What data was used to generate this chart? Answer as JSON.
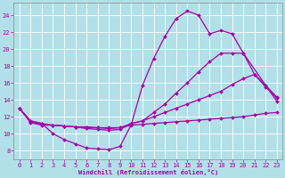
{
  "background_color": "#b2e0e8",
  "grid_color": "#d0d0d0",
  "line_color": "#aa00aa",
  "xlabel": "Windchill (Refroidissement éolien,°C)",
  "xlim": [
    -0.5,
    23.5
  ],
  "ylim": [
    7,
    25.5
  ],
  "yticks": [
    8,
    10,
    12,
    14,
    16,
    18,
    20,
    22,
    24
  ],
  "xticks": [
    0,
    1,
    2,
    3,
    4,
    5,
    6,
    7,
    8,
    9,
    10,
    11,
    12,
    13,
    14,
    15,
    16,
    17,
    18,
    19,
    20,
    21,
    22,
    23
  ],
  "lines": [
    {
      "x": [
        0,
        1,
        2,
        3,
        4,
        5,
        6,
        7,
        8,
        9,
        10,
        11,
        12,
        13,
        14,
        15,
        16,
        17,
        18,
        19,
        20,
        23
      ],
      "y": [
        13,
        11.5,
        11.2,
        10.0,
        9.3,
        8.8,
        8.3,
        8.2,
        8.1,
        8.5,
        11.1,
        15.7,
        18.9,
        21.5,
        23.6,
        24.5,
        24.0,
        21.8,
        22.2,
        21.8,
        19.5,
        13.8
      ]
    },
    {
      "x": [
        0,
        1,
        2,
        3,
        4,
        5,
        6,
        7,
        8,
        9,
        10,
        11,
        12,
        13,
        14,
        15,
        16,
        17,
        18,
        19,
        20,
        21,
        22,
        23
      ],
      "y": [
        13,
        11.4,
        11.1,
        11.0,
        10.9,
        10.8,
        10.6,
        10.5,
        10.4,
        10.5,
        11.2,
        11.5,
        12.5,
        13.5,
        14.8,
        16.0,
        17.3,
        18.5,
        19.5,
        19.5,
        19.5,
        17.0,
        15.5,
        14.2
      ]
    },
    {
      "x": [
        0,
        1,
        2,
        3,
        4,
        5,
        6,
        7,
        8,
        9,
        10,
        11,
        12,
        13,
        14,
        15,
        16,
        17,
        18,
        19,
        20,
        21,
        22,
        23
      ],
      "y": [
        13,
        11.5,
        11.2,
        11.0,
        10.9,
        10.8,
        10.7,
        10.7,
        10.6,
        10.7,
        11.2,
        11.5,
        12.0,
        12.5,
        13.0,
        13.5,
        14.0,
        14.5,
        15.0,
        15.8,
        16.5,
        17.0,
        15.7,
        14.3
      ]
    },
    {
      "x": [
        0,
        1,
        2,
        3,
        4,
        5,
        6,
        7,
        8,
        9,
        10,
        11,
        12,
        13,
        14,
        15,
        16,
        17,
        18,
        19,
        20,
        21,
        22,
        23
      ],
      "y": [
        13,
        11.3,
        11.0,
        11.0,
        10.9,
        10.8,
        10.8,
        10.7,
        10.7,
        10.7,
        11.0,
        11.1,
        11.2,
        11.3,
        11.4,
        11.5,
        11.6,
        11.7,
        11.8,
        11.9,
        12.0,
        12.2,
        12.4,
        12.5
      ]
    }
  ],
  "markersize": 2.0,
  "linewidth": 0.9
}
